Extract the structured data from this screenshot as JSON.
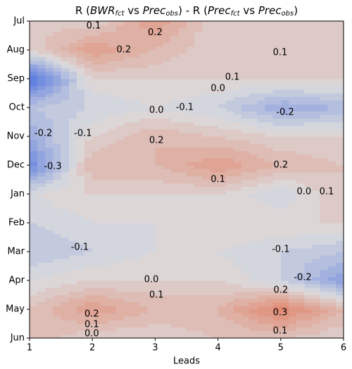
{
  "chart_data": {
    "type": "contour",
    "title": [
      "R (",
      "BWR",
      "fct",
      " vs ",
      "Prec",
      "obs",
      ") - R (",
      "Prec",
      "fct",
      " vs ",
      "Prec",
      "obs",
      ")"
    ],
    "x_label": "Leads",
    "x": [
      1,
      2,
      3,
      4,
      5,
      6
    ],
    "xlim": [
      1,
      6
    ],
    "xticks": [
      1,
      2,
      3,
      4,
      5,
      6
    ],
    "categories": [
      "Jun",
      "May",
      "Apr",
      "Mar",
      "Feb",
      "Jan",
      "Dec",
      "Nov",
      "Oct",
      "Sep",
      "Aug",
      "Jul"
    ],
    "z": [
      [
        0.15,
        0.05,
        0.05,
        0.1,
        0.1,
        0.05
      ],
      [
        0.1,
        0.25,
        0.15,
        0.15,
        0.35,
        0.15
      ],
      [
        0.0,
        0.05,
        0.05,
        0.05,
        -0.05,
        -0.25
      ],
      [
        -0.1,
        -0.05,
        0.0,
        0.0,
        -0.05,
        -0.1
      ],
      [
        -0.05,
        0.0,
        0.0,
        0.05,
        0.05,
        0.05
      ],
      [
        0.0,
        0.05,
        0.05,
        0.05,
        -0.05,
        0.1
      ],
      [
        -0.35,
        0.15,
        0.15,
        0.25,
        0.15,
        0.1
      ],
      [
        -0.2,
        0.05,
        0.15,
        0.1,
        0.05,
        0.05
      ],
      [
        -0.1,
        -0.05,
        0.0,
        -0.05,
        -0.2,
        -0.15
      ],
      [
        -0.45,
        0.05,
        0.05,
        0.05,
        0.05,
        0.05
      ],
      [
        0.05,
        0.25,
        0.15,
        0.05,
        0.1,
        0.05
      ],
      [
        0.1,
        0.05,
        0.25,
        0.05,
        0.1,
        0.1
      ]
    ],
    "levels": [
      -0.5,
      -0.45,
      -0.4,
      -0.35,
      -0.3,
      -0.25,
      -0.2,
      -0.15,
      -0.1,
      -0.05,
      0,
      0.05,
      0.1,
      0.15,
      0.2,
      0.25,
      0.3,
      0.35,
      0.4
    ],
    "zlim": [
      -0.5,
      0.5
    ],
    "colormap": [
      "#3a62e0",
      "#dcdcde",
      "#e4603c"
    ],
    "annotations": [
      {
        "text": "0.1",
        "x": 2.02,
        "y": 10.83
      },
      {
        "text": "0.2",
        "x": 3.0,
        "y": 10.6
      },
      {
        "text": "0.2",
        "x": 2.5,
        "y": 10.0
      },
      {
        "text": "0.1",
        "x": 4.99,
        "y": 9.9
      },
      {
        "text": "0.1",
        "x": 4.23,
        "y": 9.05
      },
      {
        "text": "0.0",
        "x": 4.0,
        "y": 8.66
      },
      {
        "text": "0.0",
        "x": 3.02,
        "y": 7.9
      },
      {
        "text": "-0.1",
        "x": 3.47,
        "y": 8.0
      },
      {
        "text": "-0.2",
        "x": 5.07,
        "y": 7.83
      },
      {
        "text": "-0.2",
        "x": 1.22,
        "y": 7.1
      },
      {
        "text": "-0.1",
        "x": 1.85,
        "y": 7.1
      },
      {
        "text": "0.2",
        "x": 3.02,
        "y": 6.85
      },
      {
        "text": "0.2",
        "x": 5.0,
        "y": 6.0
      },
      {
        "text": "0.1",
        "x": 4.0,
        "y": 5.5
      },
      {
        "text": "0.0",
        "x": 5.37,
        "y": 5.07
      },
      {
        "text": "0.1",
        "x": 5.73,
        "y": 5.07
      },
      {
        "text": "-0.3",
        "x": 1.37,
        "y": 5.95
      },
      {
        "text": "-0.1",
        "x": 1.8,
        "y": 3.15
      },
      {
        "text": "-0.1",
        "x": 5.0,
        "y": 3.07
      },
      {
        "text": "-0.2",
        "x": 5.35,
        "y": 2.1
      },
      {
        "text": "0.0",
        "x": 2.94,
        "y": 2.02
      },
      {
        "text": "0.1",
        "x": 3.02,
        "y": 1.49
      },
      {
        "text": "0.2",
        "x": 5.0,
        "y": 1.66
      },
      {
        "text": "0.2",
        "x": 1.99,
        "y": 0.83
      },
      {
        "text": "0.1",
        "x": 1.99,
        "y": 0.46
      },
      {
        "text": "0.0",
        "x": 1.99,
        "y": 0.15
      },
      {
        "text": "0.3",
        "x": 4.99,
        "y": 0.88
      },
      {
        "text": "0.1",
        "x": 4.99,
        "y": 0.24
      }
    ]
  }
}
